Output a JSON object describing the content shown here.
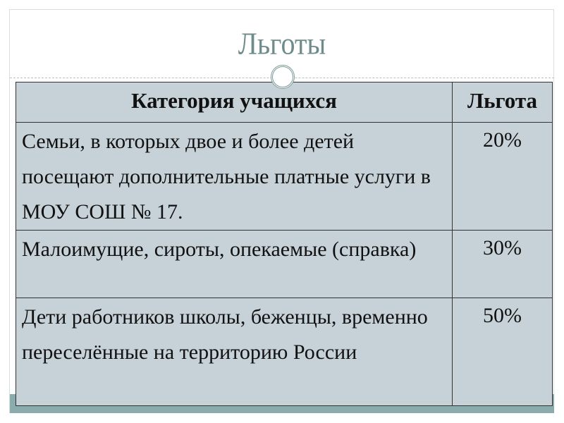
{
  "title": "Льготы",
  "table": {
    "headers": [
      "Категория учащихся",
      "Льгота"
    ],
    "rows": [
      {
        "category": "Семьи, в которых двое и более детей посещают дополнительные платные услуги в МОУ СОШ № 17.",
        "benefit": "20%"
      },
      {
        "category": "Малоимущие, сироты, опекаемые (справка)",
        "benefit": "30%"
      },
      {
        "category": "Дети работников школы, беженцы, временно переселённые на территорию России",
        "benefit": "50%"
      }
    ]
  },
  "colors": {
    "title": "#6f8c8c",
    "table_bg": "#c6d1d8",
    "accent_bar": "#8aacac"
  }
}
